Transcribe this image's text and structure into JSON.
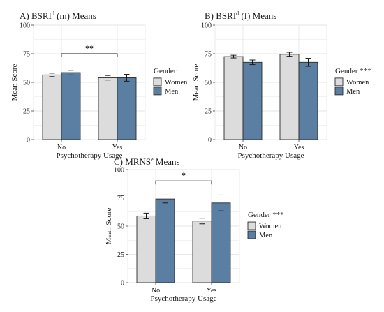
{
  "chart_data": [
    {
      "type": "bar",
      "title": "A) BSRI",
      "title_sup": "d",
      "title_rest": " (m) Means",
      "xlabel": "Psychotherapy Usage",
      "ylabel": "Mean Score",
      "categories": [
        "No",
        "Yes"
      ],
      "ylim": [
        0,
        100
      ],
      "yticks": [
        "0",
        "25",
        "50",
        "75",
        "100"
      ],
      "grid": true,
      "legend_title": "Gender",
      "legend_position": "right",
      "series": [
        {
          "name": "Women",
          "values": [
            56.5,
            54.0
          ],
          "errors": [
            1.5,
            2.0
          ]
        },
        {
          "name": "Men",
          "values": [
            58.5,
            54.0
          ],
          "errors": [
            2.0,
            3.0
          ]
        }
      ],
      "significance": {
        "label": "**",
        "between": [
          "No",
          "Yes"
        ]
      }
    },
    {
      "type": "bar",
      "title": "B) BSRI",
      "title_sup": "d",
      "title_rest": " (f) Means",
      "xlabel": "Psychotherapy Usage",
      "ylabel": "Mean Score",
      "categories": [
        "No",
        "Yes"
      ],
      "ylim": [
        0,
        100
      ],
      "yticks": [
        "0",
        "25",
        "50",
        "75",
        "100"
      ],
      "grid": true,
      "legend_title": "Gender ***",
      "legend_position": "right",
      "series": [
        {
          "name": "Women",
          "values": [
            72.5,
            74.5
          ],
          "errors": [
            1.2,
            1.7
          ]
        },
        {
          "name": "Men",
          "values": [
            67.5,
            67.5
          ],
          "errors": [
            2.0,
            3.5
          ]
        }
      ]
    },
    {
      "type": "bar",
      "title": "C) MRNS",
      "title_sup": "e",
      "title_rest": " Means",
      "xlabel": "Psychotherapy Usage",
      "ylabel": "Mean Score",
      "categories": [
        "No",
        "Yes"
      ],
      "ylim": [
        0,
        100
      ],
      "yticks": [
        "0",
        "25",
        "50",
        "75",
        "100"
      ],
      "grid": true,
      "legend_title": "Gender ***",
      "legend_position": "right",
      "series": [
        {
          "name": "Women",
          "values": [
            59.0,
            54.5
          ],
          "errors": [
            2.5,
            2.5
          ]
        },
        {
          "name": "Men",
          "values": [
            74.0,
            70.5
          ],
          "errors": [
            3.5,
            7.0
          ]
        }
      ],
      "significance": {
        "label": "*",
        "between": [
          "No",
          "Yes"
        ]
      }
    }
  ],
  "colors": {
    "women": "#dcdcdc",
    "men": "#5b7fa3",
    "bar_edge": "#2b2b2b",
    "grid": "#e6e6e6",
    "frame": "#bbbbbb"
  }
}
